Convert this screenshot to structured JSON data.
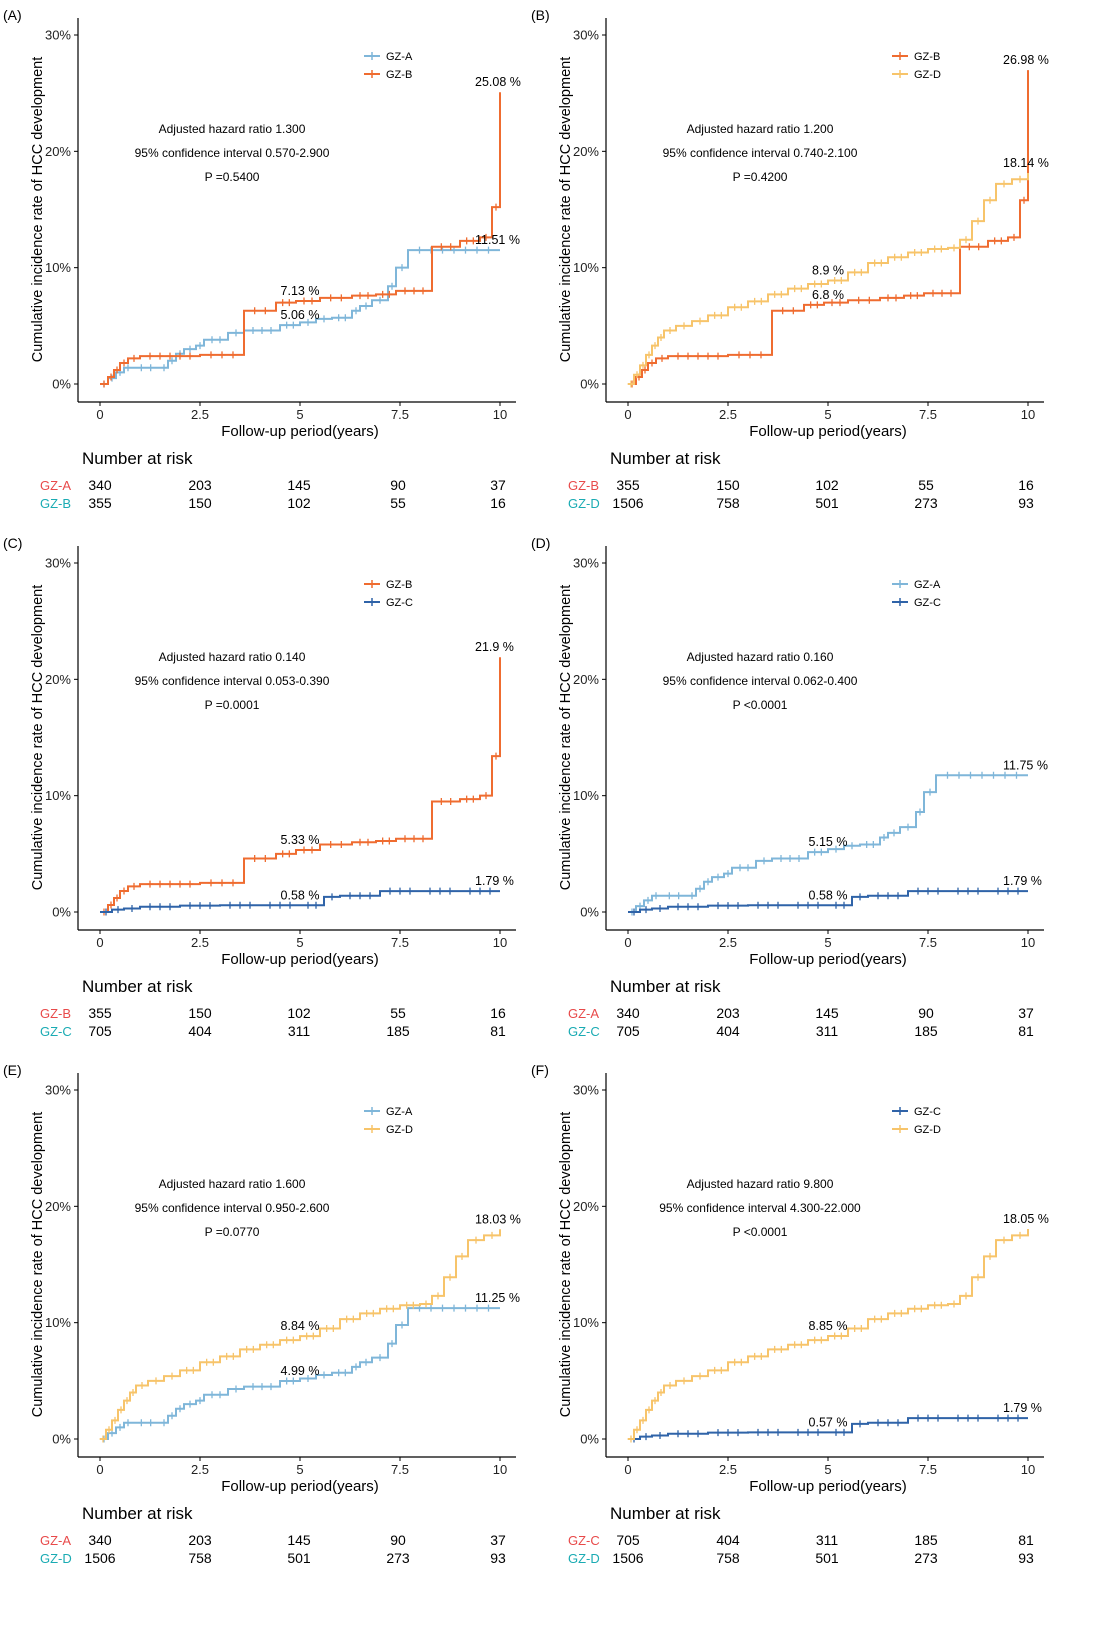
{
  "colors": {
    "GZ-A": "#7fb6d9",
    "GZ-B": "#ef6c30",
    "GZ-C": "#2f63a8",
    "GZ-D": "#f7c46a",
    "risk_red": "#e84a4a",
    "risk_teal": "#1aabb3"
  },
  "labels": {
    "x_axis": "Follow-up period(years)",
    "y_axis": "Cumulative incidence rate of HCC development",
    "risk_title": "Number at risk",
    "x_ticks": [
      "0",
      "2.5",
      "5",
      "7.5",
      "10"
    ],
    "y_ticks": [
      "0%",
      "10%",
      "20%",
      "30%"
    ]
  },
  "chart_data": [
    {
      "panel": "(A)",
      "type": "line",
      "title": "",
      "xlabel": "Follow-up period(years)",
      "ylabel": "Cumulative incidence rate of HCC development",
      "xlim": [
        0,
        10
      ],
      "ylim": [
        0,
        30
      ],
      "legend": [
        "GZ-A",
        "GZ-B"
      ],
      "stats": [
        "Adjusted hazard ratio 1.300",
        "95% confidence interval 0.570-2.900",
        "P =0.5400"
      ],
      "series": [
        {
          "name": "GZ-A",
          "x": [
            0,
            0.2,
            0.4,
            0.6,
            0.8,
            1.5,
            1.7,
            1.9,
            2.1,
            2.4,
            2.6,
            3.2,
            3.6,
            4.5,
            5.0,
            5.4,
            5.8,
            6.3,
            6.5,
            6.8,
            7.2,
            7.4,
            7.7,
            10
          ],
          "y": [
            0,
            0.5,
            1.0,
            1.4,
            1.4,
            1.4,
            2.0,
            2.6,
            3.0,
            3.3,
            3.8,
            4.4,
            4.6,
            5.06,
            5.3,
            5.6,
            5.7,
            6.3,
            6.7,
            7.2,
            8.4,
            10.0,
            11.51,
            11.51
          ]
        },
        {
          "name": "GZ-B",
          "x": [
            0,
            0.2,
            0.35,
            0.5,
            0.7,
            1.0,
            2.5,
            3.6,
            4.4,
            4.9,
            5.5,
            6.3,
            6.9,
            7.4,
            8.3,
            9.0,
            9.5,
            9.8,
            10
          ],
          "y": [
            0,
            0.6,
            1.2,
            1.8,
            2.2,
            2.4,
            2.5,
            6.3,
            7.0,
            7.13,
            7.4,
            7.6,
            7.7,
            8.0,
            11.8,
            12.3,
            12.6,
            15.2,
            25.08
          ]
        }
      ],
      "value_labels": [
        {
          "text": "25.08 %",
          "x": 10,
          "y": 25.08
        },
        {
          "text": "11.51 %",
          "x": 10,
          "y": 11.51
        },
        {
          "text": "7.13 %",
          "x": 5,
          "y": 7.13
        },
        {
          "text": "5.06 %",
          "x": 5,
          "y": 5.06
        }
      ],
      "risk_rows": [
        {
          "label": "GZ-A",
          "values": [
            "340",
            "203",
            "145",
            "90",
            "37"
          ]
        },
        {
          "label": "GZ-B",
          "values": [
            "355",
            "150",
            "102",
            "55",
            "16"
          ]
        }
      ]
    },
    {
      "panel": "(B)",
      "type": "line",
      "title": "",
      "xlabel": "Follow-up period(years)",
      "ylabel": "Cumulative incidence rate of HCC development",
      "xlim": [
        0,
        10
      ],
      "ylim": [
        0,
        30
      ],
      "legend": [
        "GZ-B",
        "GZ-D"
      ],
      "stats": [
        "Adjusted hazard ratio 1.200",
        "95% confidence interval 0.740-2.100",
        "P =0.4200"
      ],
      "series": [
        {
          "name": "GZ-B",
          "x": [
            0,
            0.2,
            0.35,
            0.5,
            0.7,
            1.0,
            2.5,
            3.6,
            4.4,
            4.9,
            5.5,
            6.3,
            6.9,
            7.4,
            8.3,
            9.0,
            9.5,
            9.8,
            10
          ],
          "y": [
            0,
            0.6,
            1.2,
            1.8,
            2.2,
            2.4,
            2.5,
            6.3,
            6.8,
            7.0,
            7.2,
            7.4,
            7.6,
            7.8,
            11.8,
            12.3,
            12.6,
            15.8,
            26.98
          ]
        },
        {
          "name": "GZ-D",
          "x": [
            0,
            0.15,
            0.3,
            0.45,
            0.6,
            0.75,
            0.9,
            1.2,
            1.6,
            2.0,
            2.5,
            3.0,
            3.5,
            4.0,
            4.5,
            5.0,
            5.5,
            6.0,
            6.5,
            7.0,
            7.5,
            8.0,
            8.3,
            8.6,
            8.9,
            9.2,
            9.6,
            10
          ],
          "y": [
            0,
            0.8,
            1.6,
            2.5,
            3.3,
            4.0,
            4.6,
            5.0,
            5.4,
            5.9,
            6.6,
            7.1,
            7.7,
            8.2,
            8.6,
            8.9,
            9.6,
            10.4,
            10.9,
            11.3,
            11.6,
            11.7,
            12.4,
            14.0,
            15.8,
            17.2,
            17.6,
            18.14
          ]
        }
      ],
      "value_labels": [
        {
          "text": "26.98 %",
          "x": 10,
          "y": 26.98
        },
        {
          "text": "18.14 %",
          "x": 10,
          "y": 18.14
        },
        {
          "text": "8.9 %",
          "x": 5,
          "y": 8.9
        },
        {
          "text": "6.8 %",
          "x": 5,
          "y": 6.8
        }
      ],
      "risk_rows": [
        {
          "label": "GZ-B",
          "values": [
            "355",
            "150",
            "102",
            "55",
            "16"
          ]
        },
        {
          "label": "GZ-D",
          "values": [
            "1506",
            "758",
            "501",
            "273",
            "93"
          ]
        }
      ]
    },
    {
      "panel": "(C)",
      "type": "line",
      "title": "",
      "xlabel": "Follow-up period(years)",
      "ylabel": "Cumulative incidence rate of HCC development",
      "xlim": [
        0,
        10
      ],
      "ylim": [
        0,
        30
      ],
      "legend": [
        "GZ-B",
        "GZ-C"
      ],
      "stats": [
        "Adjusted hazard ratio 0.140",
        "95% confidence interval 0.053-0.390",
        "P =0.0001"
      ],
      "series": [
        {
          "name": "GZ-B",
          "x": [
            0,
            0.2,
            0.35,
            0.5,
            0.7,
            1.0,
            2.5,
            3.6,
            4.4,
            4.9,
            5.5,
            6.3,
            6.9,
            7.4,
            8.3,
            9.0,
            9.5,
            9.8,
            10
          ],
          "y": [
            0,
            0.6,
            1.2,
            1.8,
            2.2,
            2.4,
            2.5,
            4.6,
            5.0,
            5.33,
            5.8,
            6.0,
            6.1,
            6.3,
            9.5,
            9.7,
            10.0,
            13.4,
            21.9
          ]
        },
        {
          "name": "GZ-C",
          "x": [
            0,
            0.3,
            0.6,
            1.0,
            2.0,
            3.0,
            4.0,
            5.0,
            5.6,
            6.0,
            7.0,
            8.0,
            9.0,
            10
          ],
          "y": [
            0,
            0.2,
            0.3,
            0.45,
            0.55,
            0.58,
            0.58,
            0.58,
            1.3,
            1.4,
            1.79,
            1.79,
            1.79,
            1.79
          ]
        }
      ],
      "value_labels": [
        {
          "text": "21.9 %",
          "x": 10,
          "y": 21.9
        },
        {
          "text": "1.79 %",
          "x": 10,
          "y": 1.79
        },
        {
          "text": "5.33 %",
          "x": 5,
          "y": 5.33
        },
        {
          "text": "0.58 %",
          "x": 5,
          "y": 0.58
        }
      ],
      "risk_rows": [
        {
          "label": "GZ-B",
          "values": [
            "355",
            "150",
            "102",
            "55",
            "16"
          ]
        },
        {
          "label": "GZ-C",
          "values": [
            "705",
            "404",
            "311",
            "185",
            "81"
          ]
        }
      ]
    },
    {
      "panel": "(D)",
      "type": "line",
      "title": "",
      "xlabel": "Follow-up period(years)",
      "ylabel": "Cumulative incidence rate of HCC development",
      "xlim": [
        0,
        10
      ],
      "ylim": [
        0,
        30
      ],
      "legend": [
        "GZ-A",
        "GZ-C"
      ],
      "stats": [
        "Adjusted hazard ratio 0.160",
        "95% confidence interval 0.062-0.400",
        "P <0.0001"
      ],
      "series": [
        {
          "name": "GZ-A",
          "x": [
            0,
            0.2,
            0.4,
            0.6,
            0.8,
            1.5,
            1.7,
            1.9,
            2.1,
            2.4,
            2.6,
            3.2,
            3.6,
            4.5,
            5.0,
            5.4,
            5.8,
            6.3,
            6.5,
            6.8,
            7.2,
            7.4,
            7.7,
            10
          ],
          "y": [
            0,
            0.5,
            1.0,
            1.4,
            1.4,
            1.4,
            2.0,
            2.6,
            3.0,
            3.3,
            3.8,
            4.4,
            4.6,
            5.15,
            5.4,
            5.7,
            5.8,
            6.4,
            6.8,
            7.3,
            8.6,
            10.3,
            11.75,
            11.75
          ]
        },
        {
          "name": "GZ-C",
          "x": [
            0,
            0.3,
            0.6,
            1.0,
            2.0,
            3.0,
            4.0,
            5.0,
            5.6,
            6.0,
            7.0,
            8.0,
            9.0,
            10
          ],
          "y": [
            0,
            0.2,
            0.3,
            0.45,
            0.55,
            0.58,
            0.58,
            0.58,
            1.3,
            1.4,
            1.79,
            1.79,
            1.79,
            1.79
          ]
        }
      ],
      "value_labels": [
        {
          "text": "11.75 %",
          "x": 10,
          "y": 11.75
        },
        {
          "text": "1.79 %",
          "x": 10,
          "y": 1.79
        },
        {
          "text": "5.15 %",
          "x": 5,
          "y": 5.15
        },
        {
          "text": "0.58 %",
          "x": 5,
          "y": 0.58
        }
      ],
      "risk_rows": [
        {
          "label": "GZ-A",
          "values": [
            "340",
            "203",
            "145",
            "90",
            "37"
          ]
        },
        {
          "label": "GZ-C",
          "values": [
            "705",
            "404",
            "311",
            "185",
            "81"
          ]
        }
      ]
    },
    {
      "panel": "(E)",
      "type": "line",
      "title": "",
      "xlabel": "Follow-up period(years)",
      "ylabel": "Cumulative incidence rate of HCC development",
      "xlim": [
        0,
        10
      ],
      "ylim": [
        0,
        30
      ],
      "legend": [
        "GZ-A",
        "GZ-D"
      ],
      "stats": [
        "Adjusted hazard ratio 1.600",
        "95% confidence interval 0.950-2.600",
        "P =0.0770"
      ],
      "series": [
        {
          "name": "GZ-A",
          "x": [
            0,
            0.2,
            0.4,
            0.6,
            0.8,
            1.5,
            1.7,
            1.9,
            2.1,
            2.4,
            2.6,
            3.2,
            3.6,
            4.5,
            5.0,
            5.4,
            5.8,
            6.3,
            6.5,
            6.8,
            7.2,
            7.4,
            7.7,
            10
          ],
          "y": [
            0,
            0.5,
            1.0,
            1.4,
            1.4,
            1.4,
            2.0,
            2.6,
            3.0,
            3.3,
            3.8,
            4.3,
            4.5,
            4.99,
            5.2,
            5.5,
            5.7,
            6.2,
            6.6,
            7.0,
            8.2,
            9.8,
            11.25,
            11.25
          ]
        },
        {
          "name": "GZ-D",
          "x": [
            0,
            0.15,
            0.3,
            0.45,
            0.6,
            0.75,
            0.9,
            1.2,
            1.6,
            2.0,
            2.5,
            3.0,
            3.5,
            4.0,
            4.5,
            5.0,
            5.5,
            6.0,
            6.5,
            7.0,
            7.5,
            8.0,
            8.3,
            8.6,
            8.9,
            9.2,
            9.6,
            10
          ],
          "y": [
            0,
            0.8,
            1.6,
            2.5,
            3.3,
            4.0,
            4.6,
            5.0,
            5.4,
            5.9,
            6.6,
            7.1,
            7.7,
            8.1,
            8.5,
            8.84,
            9.5,
            10.3,
            10.8,
            11.2,
            11.5,
            11.6,
            12.3,
            13.9,
            15.7,
            17.1,
            17.5,
            18.03
          ]
        }
      ],
      "value_labels": [
        {
          "text": "18.03 %",
          "x": 10,
          "y": 18.03
        },
        {
          "text": "11.25 %",
          "x": 10,
          "y": 11.25
        },
        {
          "text": "8.84 %",
          "x": 5,
          "y": 8.84
        },
        {
          "text": "4.99 %",
          "x": 5,
          "y": 4.99
        }
      ],
      "risk_rows": [
        {
          "label": "GZ-A",
          "values": [
            "340",
            "203",
            "145",
            "90",
            "37"
          ]
        },
        {
          "label": "GZ-D",
          "values": [
            "1506",
            "758",
            "501",
            "273",
            "93"
          ]
        }
      ]
    },
    {
      "panel": "(F)",
      "type": "line",
      "title": "",
      "xlabel": "Follow-up period(years)",
      "ylabel": "Cumulative incidence rate of HCC development",
      "xlim": [
        0,
        10
      ],
      "ylim": [
        0,
        30
      ],
      "legend": [
        "GZ-C",
        "GZ-D"
      ],
      "stats": [
        "Adjusted hazard ratio 9.800",
        "95% confidence interval 4.300-22.000",
        "P <0.0001"
      ],
      "series": [
        {
          "name": "GZ-C",
          "x": [
            0,
            0.3,
            0.6,
            1.0,
            2.0,
            3.0,
            4.0,
            5.0,
            5.6,
            6.0,
            7.0,
            8.0,
            9.0,
            10
          ],
          "y": [
            0,
            0.2,
            0.3,
            0.45,
            0.55,
            0.57,
            0.57,
            0.57,
            1.3,
            1.4,
            1.79,
            1.79,
            1.79,
            1.79
          ]
        },
        {
          "name": "GZ-D",
          "x": [
            0,
            0.15,
            0.3,
            0.45,
            0.6,
            0.75,
            0.9,
            1.2,
            1.6,
            2.0,
            2.5,
            3.0,
            3.5,
            4.0,
            4.5,
            5.0,
            5.5,
            6.0,
            6.5,
            7.0,
            7.5,
            8.0,
            8.3,
            8.6,
            8.9,
            9.2,
            9.6,
            10
          ],
          "y": [
            0,
            0.8,
            1.6,
            2.5,
            3.3,
            4.0,
            4.6,
            5.0,
            5.4,
            5.9,
            6.6,
            7.1,
            7.7,
            8.1,
            8.5,
            8.85,
            9.5,
            10.3,
            10.8,
            11.2,
            11.5,
            11.6,
            12.3,
            13.9,
            15.7,
            17.1,
            17.5,
            18.05
          ]
        }
      ],
      "value_labels": [
        {
          "text": "18.05 %",
          "x": 10,
          "y": 18.05
        },
        {
          "text": "1.79 %",
          "x": 10,
          "y": 1.79
        },
        {
          "text": "8.85 %",
          "x": 5,
          "y": 8.85
        },
        {
          "text": "0.57 %",
          "x": 5,
          "y": 0.57
        }
      ],
      "risk_rows": [
        {
          "label": "GZ-C",
          "values": [
            "705",
            "404",
            "311",
            "185",
            "81"
          ]
        },
        {
          "label": "GZ-D",
          "values": [
            "1506",
            "758",
            "501",
            "273",
            "93"
          ]
        }
      ]
    }
  ]
}
